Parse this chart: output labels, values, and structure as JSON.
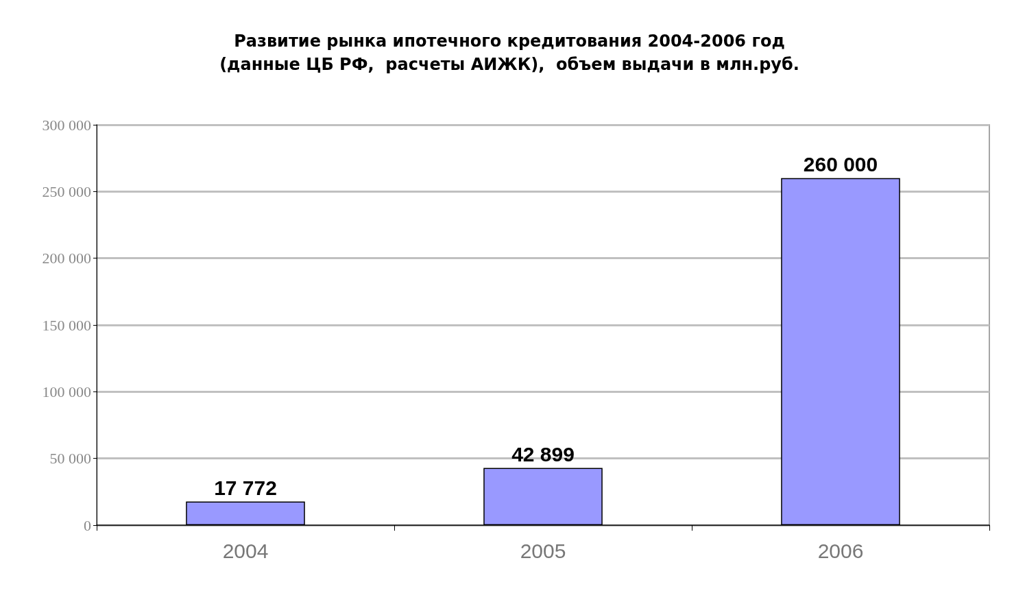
{
  "chart_data": {
    "type": "bar",
    "title": "Развитие рынка ипотечного кредитования 2004-2006 год\n(данные ЦБ РФ,  расчеты АИЖК),  объем выдачи в млн.руб.",
    "categories": [
      "2004",
      "2005",
      "2006"
    ],
    "values": [
      17772,
      42899,
      260000
    ],
    "value_labels": [
      "17 772",
      "42 899",
      "260 000"
    ],
    "color": "#9999ff",
    "ylim": [
      0,
      300000
    ],
    "yticks": [
      {
        "value": 0,
        "label": "0"
      },
      {
        "value": 50000,
        "label": "50 000"
      },
      {
        "value": 100000,
        "label": "100 000"
      },
      {
        "value": 150000,
        "label": "150 000"
      },
      {
        "value": 200000,
        "label": "200 000"
      },
      {
        "value": 250000,
        "label": "250 000"
      },
      {
        "value": 300000,
        "label": "300 000"
      }
    ],
    "grid": "y"
  }
}
